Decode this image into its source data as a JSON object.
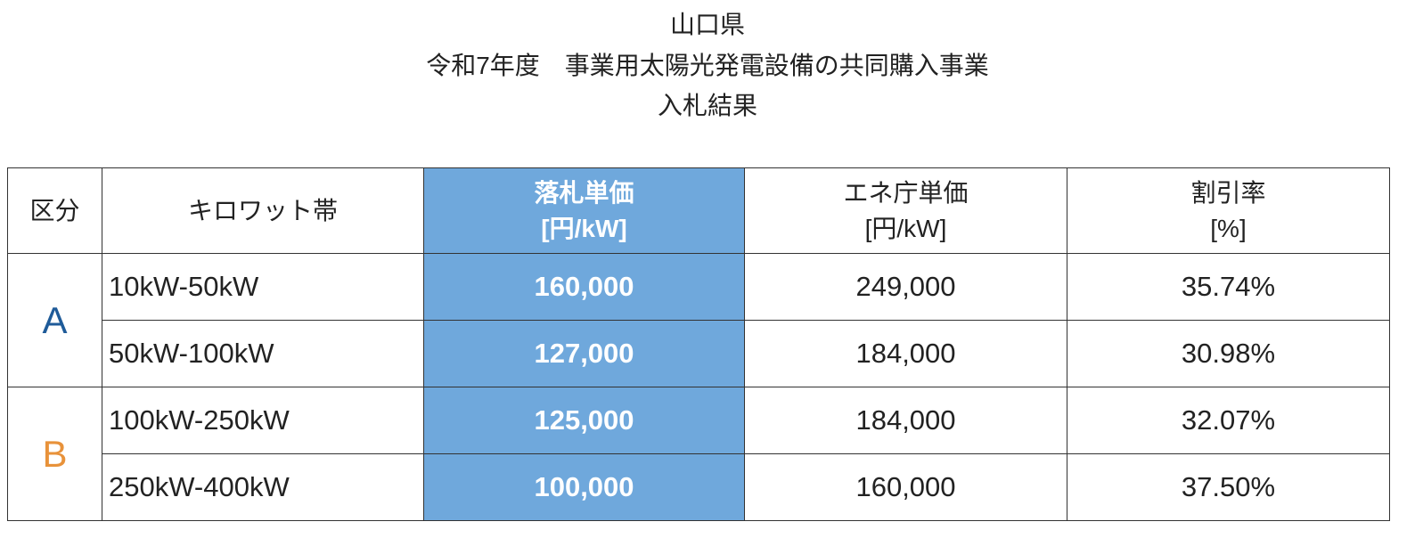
{
  "header": {
    "lines": [
      "山口県",
      "令和7年度　事業用太陽光発電設備の共同購入事業",
      "入札結果"
    ]
  },
  "table": {
    "columns": [
      [
        "区分"
      ],
      [
        "キロワット帯"
      ],
      [
        "落札単価",
        "[円/kW]"
      ],
      [
        "エネ庁単価",
        "[円/kW]"
      ],
      [
        "割引率",
        "[%]"
      ]
    ],
    "groups": [
      {
        "label": "A",
        "rows": [
          [
            "10kW-50kW",
            "160,000",
            "249,000",
            "35.74%"
          ],
          [
            "50kW-100kW",
            "127,000",
            "184,000",
            "30.98%"
          ]
        ]
      },
      {
        "label": "B",
        "rows": [
          [
            "100kW-250kW",
            "125,000",
            "184,000",
            "32.07%"
          ],
          [
            "250kW-400kW",
            "100,000",
            "160,000",
            "37.50%"
          ]
        ]
      }
    ]
  }
}
